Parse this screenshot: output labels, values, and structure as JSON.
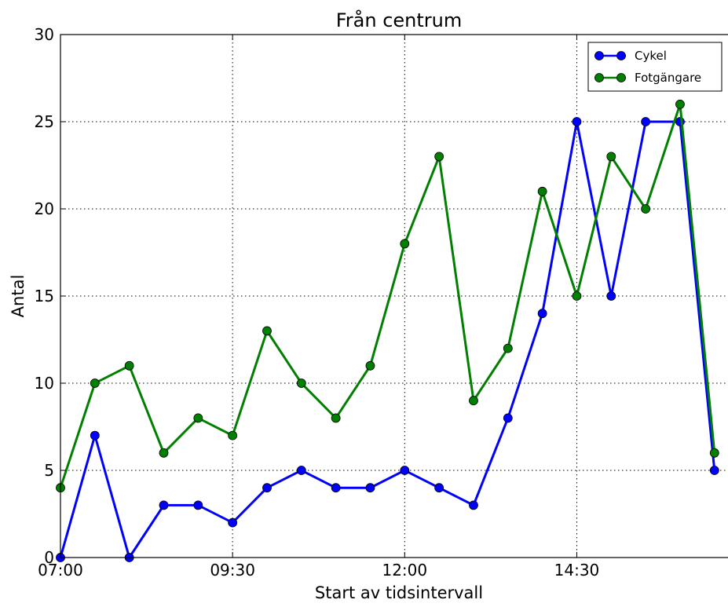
{
  "chart_data": {
    "type": "line",
    "title": "Från centrum",
    "xlabel": "Start av tidsintervall",
    "ylabel": "Antal",
    "x": [
      "07:00",
      "07:30",
      "08:00",
      "08:30",
      "09:00",
      "09:30",
      "10:00",
      "10:30",
      "11:00",
      "11:30",
      "12:00",
      "12:30",
      "13:00",
      "13:30",
      "14:00",
      "14:30",
      "15:00",
      "15:30",
      "16:00",
      "16:30"
    ],
    "x_tick_labels": [
      "07:00",
      "09:30",
      "12:00",
      "14:30"
    ],
    "x_tick_values": [
      "07:00",
      "09:30",
      "12:00",
      "14:30"
    ],
    "xlim": [
      "07:00",
      "16:50"
    ],
    "ylim": [
      0,
      30
    ],
    "y_ticks": [
      0,
      5,
      10,
      15,
      20,
      25,
      30
    ],
    "grid": true,
    "legend_position": "top-right",
    "series": [
      {
        "name": "Cykel",
        "color": "#0000ff",
        "values": [
          0,
          7,
          0,
          3,
          3,
          2,
          4,
          5,
          4,
          4,
          5,
          4,
          3,
          8,
          14,
          25,
          15,
          25,
          25,
          5
        ]
      },
      {
        "name": "Fotgängare",
        "color": "#007f00",
        "values": [
          4,
          10,
          11,
          6,
          8,
          7,
          13,
          10,
          8,
          11,
          18,
          23,
          9,
          12,
          21,
          15,
          23,
          20,
          26,
          6
        ]
      }
    ]
  }
}
